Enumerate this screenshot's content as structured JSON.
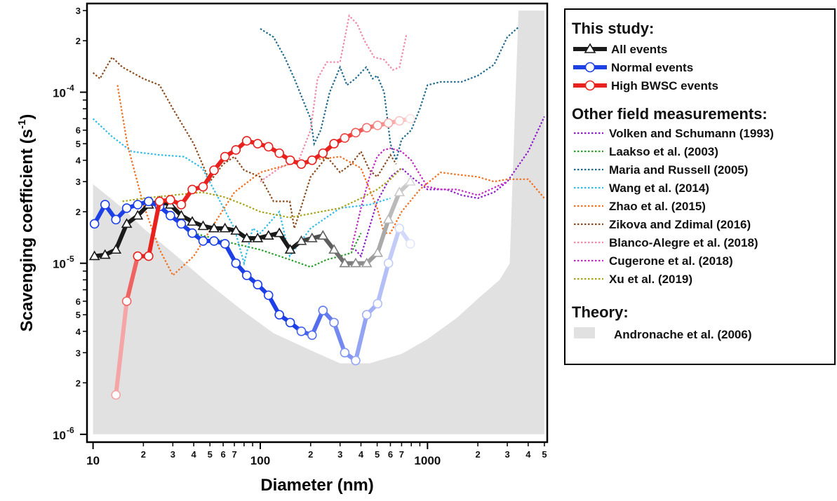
{
  "chart_data": {
    "type": "line",
    "x_scale": "log",
    "y_scale": "log",
    "xlim": [
      9.2,
      5200
    ],
    "ylim": [
      9e-07,
      0.00033
    ],
    "xlabel": "Diameter (nm)",
    "ylabel_main": "Scavenging coefficient (s",
    "ylabel_sup": "-1",
    "ylabel_close": ")",
    "x_major_ticks": [
      {
        "value": 10,
        "label": "10"
      },
      {
        "value": 100,
        "label": "100"
      },
      {
        "value": 1000,
        "label": "1000"
      }
    ],
    "x_minor_ticks": [
      {
        "value": 20,
        "label": "2"
      },
      {
        "value": 30,
        "label": "3"
      },
      {
        "value": 40,
        "label": "4"
      },
      {
        "value": 50,
        "label": "5"
      },
      {
        "value": 60,
        "label": "6"
      },
      {
        "value": 70,
        "label": "7"
      },
      {
        "value": 80,
        "label": ""
      },
      {
        "value": 90,
        "label": ""
      },
      {
        "value": 200,
        "label": "2"
      },
      {
        "value": 300,
        "label": "3"
      },
      {
        "value": 400,
        "label": "4"
      },
      {
        "value": 500,
        "label": "5"
      },
      {
        "value": 600,
        "label": "6"
      },
      {
        "value": 700,
        "label": "7"
      },
      {
        "value": 800,
        "label": ""
      },
      {
        "value": 900,
        "label": ""
      },
      {
        "value": 2000,
        "label": "2"
      },
      {
        "value": 3000,
        "label": "3"
      },
      {
        "value": 4000,
        "label": "4"
      },
      {
        "value": 5000,
        "label": "5"
      }
    ],
    "y_major_ticks": [
      {
        "value": 1e-06,
        "base": "10",
        "exp": "-6"
      },
      {
        "value": 1e-05,
        "base": "10",
        "exp": "-5"
      },
      {
        "value": 0.0001,
        "base": "10",
        "exp": "-4"
      }
    ],
    "y_minor_ticks": [
      {
        "value": 2e-06,
        "label": "2"
      },
      {
        "value": 3e-06,
        "label": "3"
      },
      {
        "value": 4e-06,
        "label": "4"
      },
      {
        "value": 5e-06,
        "label": "5"
      },
      {
        "value": 6e-06,
        "label": "6"
      },
      {
        "value": 7e-06,
        "label": ""
      },
      {
        "value": 8e-06,
        "label": ""
      },
      {
        "value": 9e-06,
        "label": ""
      },
      {
        "value": 2e-05,
        "label": "2"
      },
      {
        "value": 3e-05,
        "label": "3"
      },
      {
        "value": 4e-05,
        "label": "4"
      },
      {
        "value": 5e-05,
        "label": "5"
      },
      {
        "value": 6e-05,
        "label": "6"
      },
      {
        "value": 7e-05,
        "label": ""
      },
      {
        "value": 8e-05,
        "label": ""
      },
      {
        "value": 9e-05,
        "label": ""
      },
      {
        "value": 0.0002,
        "label": "2"
      },
      {
        "value": 0.0003,
        "label": "3"
      }
    ],
    "theory_band": {
      "name": "Andronache et al. (2006)",
      "color": "#e1e1e1",
      "upper": [
        [
          10,
          2.9e-05
        ],
        [
          15,
          2.1e-05
        ],
        [
          20,
          1.6e-05
        ],
        [
          30,
          1.15e-05
        ],
        [
          50,
          7.5e-06
        ],
        [
          80,
          5.2e-06
        ],
        [
          120,
          3.9e-06
        ],
        [
          200,
          3.1e-06
        ],
        [
          300,
          2.6e-06
        ],
        [
          450,
          2.6e-06
        ],
        [
          700,
          2.95e-06
        ],
        [
          1000,
          3.6e-06
        ],
        [
          1500,
          4.8e-06
        ],
        [
          2000,
          6.2e-06
        ],
        [
          2700,
          8e-06
        ],
        [
          3100,
          1e-05
        ],
        [
          3500,
          0.0003
        ],
        [
          5000,
          0.0003
        ]
      ],
      "lower": [
        [
          5000,
          1e-06
        ],
        [
          10,
          1e-06
        ]
      ]
    },
    "field_series": [
      {
        "name": "Volken and Schumann (1993)",
        "color": "#8e1cc8",
        "points": [
          [
            370,
            1.2e-05
          ],
          [
            400,
            1.1e-05
          ],
          [
            430,
            1.4e-05
          ],
          [
            500,
            2.3e-05
          ],
          [
            600,
            3.2e-05
          ],
          [
            700,
            3.6e-05
          ],
          [
            800,
            3.2e-05
          ],
          [
            1000,
            2.7e-05
          ],
          [
            1300,
            2.7e-05
          ],
          [
            1600,
            2.5e-05
          ],
          [
            2000,
            2.4e-05
          ],
          [
            2500,
            2.6e-05
          ],
          [
            3000,
            3e-05
          ],
          [
            4000,
            4.5e-05
          ],
          [
            5000,
            7.2e-05
          ]
        ]
      },
      {
        "name": "Laakso et al. (2003)",
        "color": "#2aa02a",
        "points": [
          [
            40,
            1.5e-05
          ],
          [
            60,
            1.35e-05
          ],
          [
            100,
            1.2e-05
          ],
          [
            150,
            1.05e-05
          ],
          [
            200,
            9.5e-06
          ],
          [
            250,
            1.05e-05
          ],
          [
            300,
            1.1e-05
          ],
          [
            350,
            1.15e-05
          ],
          [
            400,
            1.5e-05
          ]
        ]
      },
      {
        "name": "Maria and Russell (2005)",
        "color": "#1f6a8e",
        "points": [
          [
            100,
            0.000235
          ],
          [
            120,
            0.00021
          ],
          [
            140,
            0.00016
          ],
          [
            160,
            0.00012
          ],
          [
            180,
            9e-05
          ],
          [
            200,
            7e-05
          ],
          [
            210,
            5e-05
          ],
          [
            230,
            6e-05
          ],
          [
            260,
            0.0001
          ],
          [
            300,
            0.00014
          ],
          [
            330,
            0.00011
          ],
          [
            370,
            0.00012
          ],
          [
            400,
            0.00013
          ],
          [
            430,
            0.00014
          ],
          [
            470,
            0.00012
          ],
          [
            500,
            0.000125
          ],
          [
            550,
            0.0001
          ],
          [
            600,
            5e-05
          ],
          [
            650,
            4e-05
          ],
          [
            700,
            5.3e-05
          ],
          [
            800,
            6e-05
          ],
          [
            900,
            8e-05
          ],
          [
            1000,
            0.00011
          ],
          [
            1200,
            0.000115
          ],
          [
            1600,
            0.000115
          ],
          [
            2000,
            0.000125
          ],
          [
            2500,
            0.000145
          ],
          [
            3000,
            0.00021
          ],
          [
            3500,
            0.00024
          ]
        ]
      },
      {
        "name": "Wang et al. (2014)",
        "color": "#33bce8",
        "points": [
          [
            10,
            7e-05
          ],
          [
            13,
            5.5e-05
          ],
          [
            17,
            4.5e-05
          ],
          [
            25,
            4.3e-05
          ],
          [
            35,
            4.2e-05
          ],
          [
            45,
            3.6e-05
          ],
          [
            55,
            2.5e-05
          ],
          [
            70,
            1.6e-05
          ],
          [
            80,
            1e-05
          ],
          [
            90,
            1.6e-05
          ],
          [
            100,
            1.5e-05
          ],
          [
            130,
            2e-05
          ],
          [
            150,
            1.1e-05
          ],
          [
            200,
            1.6e-05
          ],
          [
            300,
            2.1e-05
          ],
          [
            450,
            2.2e-05
          ],
          [
            600,
            2.4e-05
          ]
        ]
      },
      {
        "name": "Zhao et al. (2015)",
        "color": "#f07022",
        "points": [
          [
            14,
            0.00011
          ],
          [
            16,
            5e-05
          ],
          [
            20,
            2.2e-05
          ],
          [
            25,
            1.2e-05
          ],
          [
            30,
            8.5e-06
          ],
          [
            40,
            1.1e-05
          ],
          [
            55,
            1.8e-05
          ],
          [
            70,
            2.6e-05
          ],
          [
            100,
            3.4e-05
          ],
          [
            150,
            3.8e-05
          ],
          [
            200,
            4e-05
          ],
          [
            300,
            4.2e-05
          ],
          [
            400,
            3.6e-05
          ],
          [
            500,
            2.1e-05
          ],
          [
            550,
            1.5e-05
          ],
          [
            600,
            1.5e-05
          ],
          [
            700,
            2e-05
          ],
          [
            900,
            2.7e-05
          ],
          [
            1200,
            3.4e-05
          ],
          [
            1500,
            3.3e-05
          ],
          [
            2000,
            3.2e-05
          ],
          [
            2500,
            3e-05
          ],
          [
            3000,
            3.1e-05
          ],
          [
            4000,
            3.1e-05
          ],
          [
            5000,
            2.4e-05
          ]
        ]
      },
      {
        "name": "Zikova and Zdimal (2016)",
        "color": "#8b4a1c",
        "points": [
          [
            10,
            0.00013
          ],
          [
            11,
            0.00012
          ],
          [
            12,
            0.00014
          ],
          [
            13,
            0.00016
          ],
          [
            15,
            0.00014
          ],
          [
            20,
            0.00012
          ],
          [
            25,
            0.00011
          ],
          [
            30,
            8e-05
          ],
          [
            40,
            5e-05
          ],
          [
            50,
            3e-05
          ],
          [
            60,
            3.8e-05
          ],
          [
            70,
            4.2e-05
          ],
          [
            80,
            3.5e-05
          ],
          [
            100,
            3.2e-05
          ],
          [
            120,
            2.3e-05
          ],
          [
            150,
            2.3e-05
          ],
          [
            160,
            1.6e-05
          ],
          [
            180,
            2.3e-05
          ],
          [
            200,
            3.2e-05
          ],
          [
            250,
            4.2e-05
          ],
          [
            300,
            3.4e-05
          ],
          [
            350,
            3.8e-05
          ],
          [
            400,
            4.5e-05
          ],
          [
            450,
            3.5e-05
          ],
          [
            500,
            3.2e-05
          ],
          [
            600,
            4.3e-05
          ],
          [
            650,
            3.8e-05
          ]
        ]
      },
      {
        "name": "Blanco-Alegre et al. (2018)",
        "color": "#f08aa8",
        "points": [
          [
            100,
            3e-05
          ],
          [
            130,
            3.6e-05
          ],
          [
            170,
            4e-05
          ],
          [
            200,
            6e-05
          ],
          [
            220,
            0.00012
          ],
          [
            250,
            0.00015
          ],
          [
            300,
            0.00015
          ],
          [
            340,
            0.00028
          ],
          [
            380,
            0.00025
          ],
          [
            420,
            0.0002
          ],
          [
            480,
            0.00016
          ],
          [
            550,
            0.000155
          ],
          [
            620,
            0.000135
          ],
          [
            680,
            0.00014
          ],
          [
            750,
            0.00022
          ]
        ]
      },
      {
        "name": "Cugerone et al. (2018)",
        "color": "#c229c2",
        "points": [
          [
            350,
            1.2e-05
          ],
          [
            400,
            2.1e-05
          ],
          [
            450,
            3.2e-05
          ],
          [
            500,
            4.2e-05
          ],
          [
            550,
            4.6e-05
          ],
          [
            600,
            4.7e-05
          ],
          [
            700,
            4.5e-05
          ],
          [
            800,
            4e-05
          ],
          [
            900,
            3.3e-05
          ],
          [
            1000,
            2.8e-05
          ],
          [
            1200,
            2.7e-05
          ],
          [
            1500,
            2.7e-05
          ],
          [
            2000,
            2.5e-05
          ],
          [
            3000,
            3e-05
          ]
        ]
      },
      {
        "name": "Xu et al. (2019)",
        "color": "#a8a41a",
        "points": [
          [
            15,
            2.3e-05
          ],
          [
            20,
            2.4e-05
          ],
          [
            30,
            2.5e-05
          ],
          [
            45,
            2.6e-05
          ],
          [
            60,
            2.45e-05
          ],
          [
            80,
            2.2e-05
          ],
          [
            100,
            2e-05
          ],
          [
            150,
            1.85e-05
          ],
          [
            200,
            1.95e-05
          ],
          [
            300,
            2.1e-05
          ],
          [
            400,
            2.4e-05
          ],
          [
            500,
            2.7e-05
          ],
          [
            600,
            3.1e-05
          ],
          [
            700,
            3.6e-05
          ]
        ]
      }
    ],
    "study_series": [
      {
        "name": "All events",
        "color": "#1a1a1a",
        "marker": "triangle",
        "fade_from": 160,
        "fade_color": "#d8d8d8",
        "x": [
          10.2,
          11.8,
          13.7,
          15.9,
          18.5,
          21.5,
          25,
          29,
          33.7,
          39.2,
          45.5,
          52.9,
          61.5,
          71.5,
          83,
          96.5,
          112,
          130,
          151,
          176,
          204,
          237,
          276,
          320,
          372,
          433,
          503,
          584,
          679,
          789
        ],
        "y": [
          1.1e-05,
          1.12e-05,
          1.2e-05,
          1.7e-05,
          1.9e-05,
          2.2e-05,
          2.3e-05,
          2.2e-05,
          1.9e-05,
          1.75e-05,
          1.65e-05,
          1.6e-05,
          1.6e-05,
          1.55e-05,
          1.4e-05,
          1.4e-05,
          1.45e-05,
          1.5e-05,
          1.2e-05,
          1.35e-05,
          1.4e-05,
          1.45e-05,
          1.2e-05,
          1e-05,
          1e-05,
          1e-05,
          1.15e-05,
          1.8e-05,
          2.6e-05,
          3e-05
        ]
      },
      {
        "name": "Normal events",
        "color": "#1c3fe6",
        "marker": "circle",
        "fade_from": 160,
        "fade_color": "#e3e7fb",
        "x": [
          10.2,
          11.8,
          13.7,
          15.9,
          18.5,
          21.5,
          25,
          29,
          33.7,
          39.2,
          45.5,
          52.9,
          61.5,
          71.5,
          83,
          96.5,
          112,
          130,
          151,
          176,
          204,
          237,
          276,
          320,
          372,
          433,
          503,
          584,
          679,
          789
        ],
        "y": [
          1.7e-05,
          2.2e-05,
          1.8e-05,
          2.1e-05,
          2.2e-05,
          2.3e-05,
          2.15e-05,
          1.9e-05,
          1.7e-05,
          1.5e-05,
          1.35e-05,
          1.35e-05,
          1.3e-05,
          1e-05,
          8.5e-06,
          7.5e-06,
          6.5e-06,
          5e-06,
          4.5e-06,
          4e-06,
          3.8e-06,
          5.3e-06,
          4.5e-06,
          3e-06,
          2.7e-06,
          5e-06,
          5.8e-06,
          1e-05,
          1.6e-05,
          1.3e-05
        ]
      },
      {
        "name": "High BWSC events",
        "color": "#e8221e",
        "marker": "circle",
        "fade_from": 320,
        "fade_color": "#fbe0e0",
        "start_color": "#f5a5a5",
        "x": [
          13.7,
          15.9,
          18.5,
          21.5,
          25,
          29,
          33.7,
          39.2,
          45.5,
          52.9,
          61.5,
          71.5,
          83,
          96.5,
          112,
          130,
          151,
          176,
          204,
          237,
          276,
          320,
          372,
          433,
          503,
          584,
          679,
          789
        ],
        "y": [
          1.7e-06,
          6e-06,
          1.1e-05,
          1.1e-05,
          2.3e-05,
          2.35e-05,
          2.2e-05,
          2.7e-05,
          2.8e-05,
          3.5e-05,
          4.2e-05,
          4.6e-05,
          5.2e-05,
          5e-05,
          4.8e-05,
          4.4e-05,
          4e-05,
          3.8e-05,
          4e-05,
          4.4e-05,
          5e-05,
          5.4e-05,
          5.8e-05,
          6.2e-05,
          6.4e-05,
          6.6e-05,
          6.8e-05,
          7e-05
        ]
      }
    ],
    "legend": {
      "this_study_heading": "This study:",
      "other_heading": "Other field measurements:",
      "theory_heading": "Theory:"
    }
  }
}
